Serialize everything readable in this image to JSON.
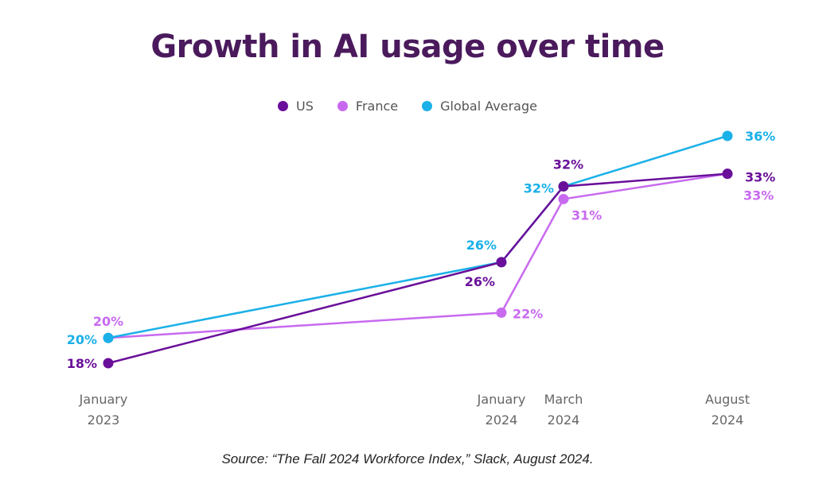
{
  "chart_data": {
    "type": "line",
    "title": "Growth in AI usage over time",
    "source": "Source: “The Fall 2024 Workforce Index,” Slack, August 2024.",
    "categories": [
      [
        "January",
        "2023"
      ],
      [
        "January",
        "2024"
      ],
      [
        "March",
        "2024"
      ],
      [
        "August",
        "2024"
      ]
    ],
    "x": [
      "2023-01",
      "2024-01",
      "2024-03",
      "2024-08"
    ],
    "legend_position": "top-center",
    "grid": false,
    "ylim": [
      15,
      38
    ],
    "series": [
      {
        "name": "US",
        "color": "#6a0f9a",
        "values": [
          18,
          26,
          32,
          33
        ],
        "labels": [
          "18%",
          "26%",
          "32%",
          "33%"
        ]
      },
      {
        "name": "France",
        "color": "#c86af0",
        "values": [
          20,
          22,
          31,
          33
        ],
        "labels": [
          "20%",
          "22%",
          "31%",
          "33%"
        ]
      },
      {
        "name": "Global Average",
        "color": "#1ab0e8",
        "values": [
          20,
          26,
          32,
          36
        ],
        "labels": [
          "20%",
          "26%",
          "32%",
          "36%"
        ]
      }
    ]
  }
}
